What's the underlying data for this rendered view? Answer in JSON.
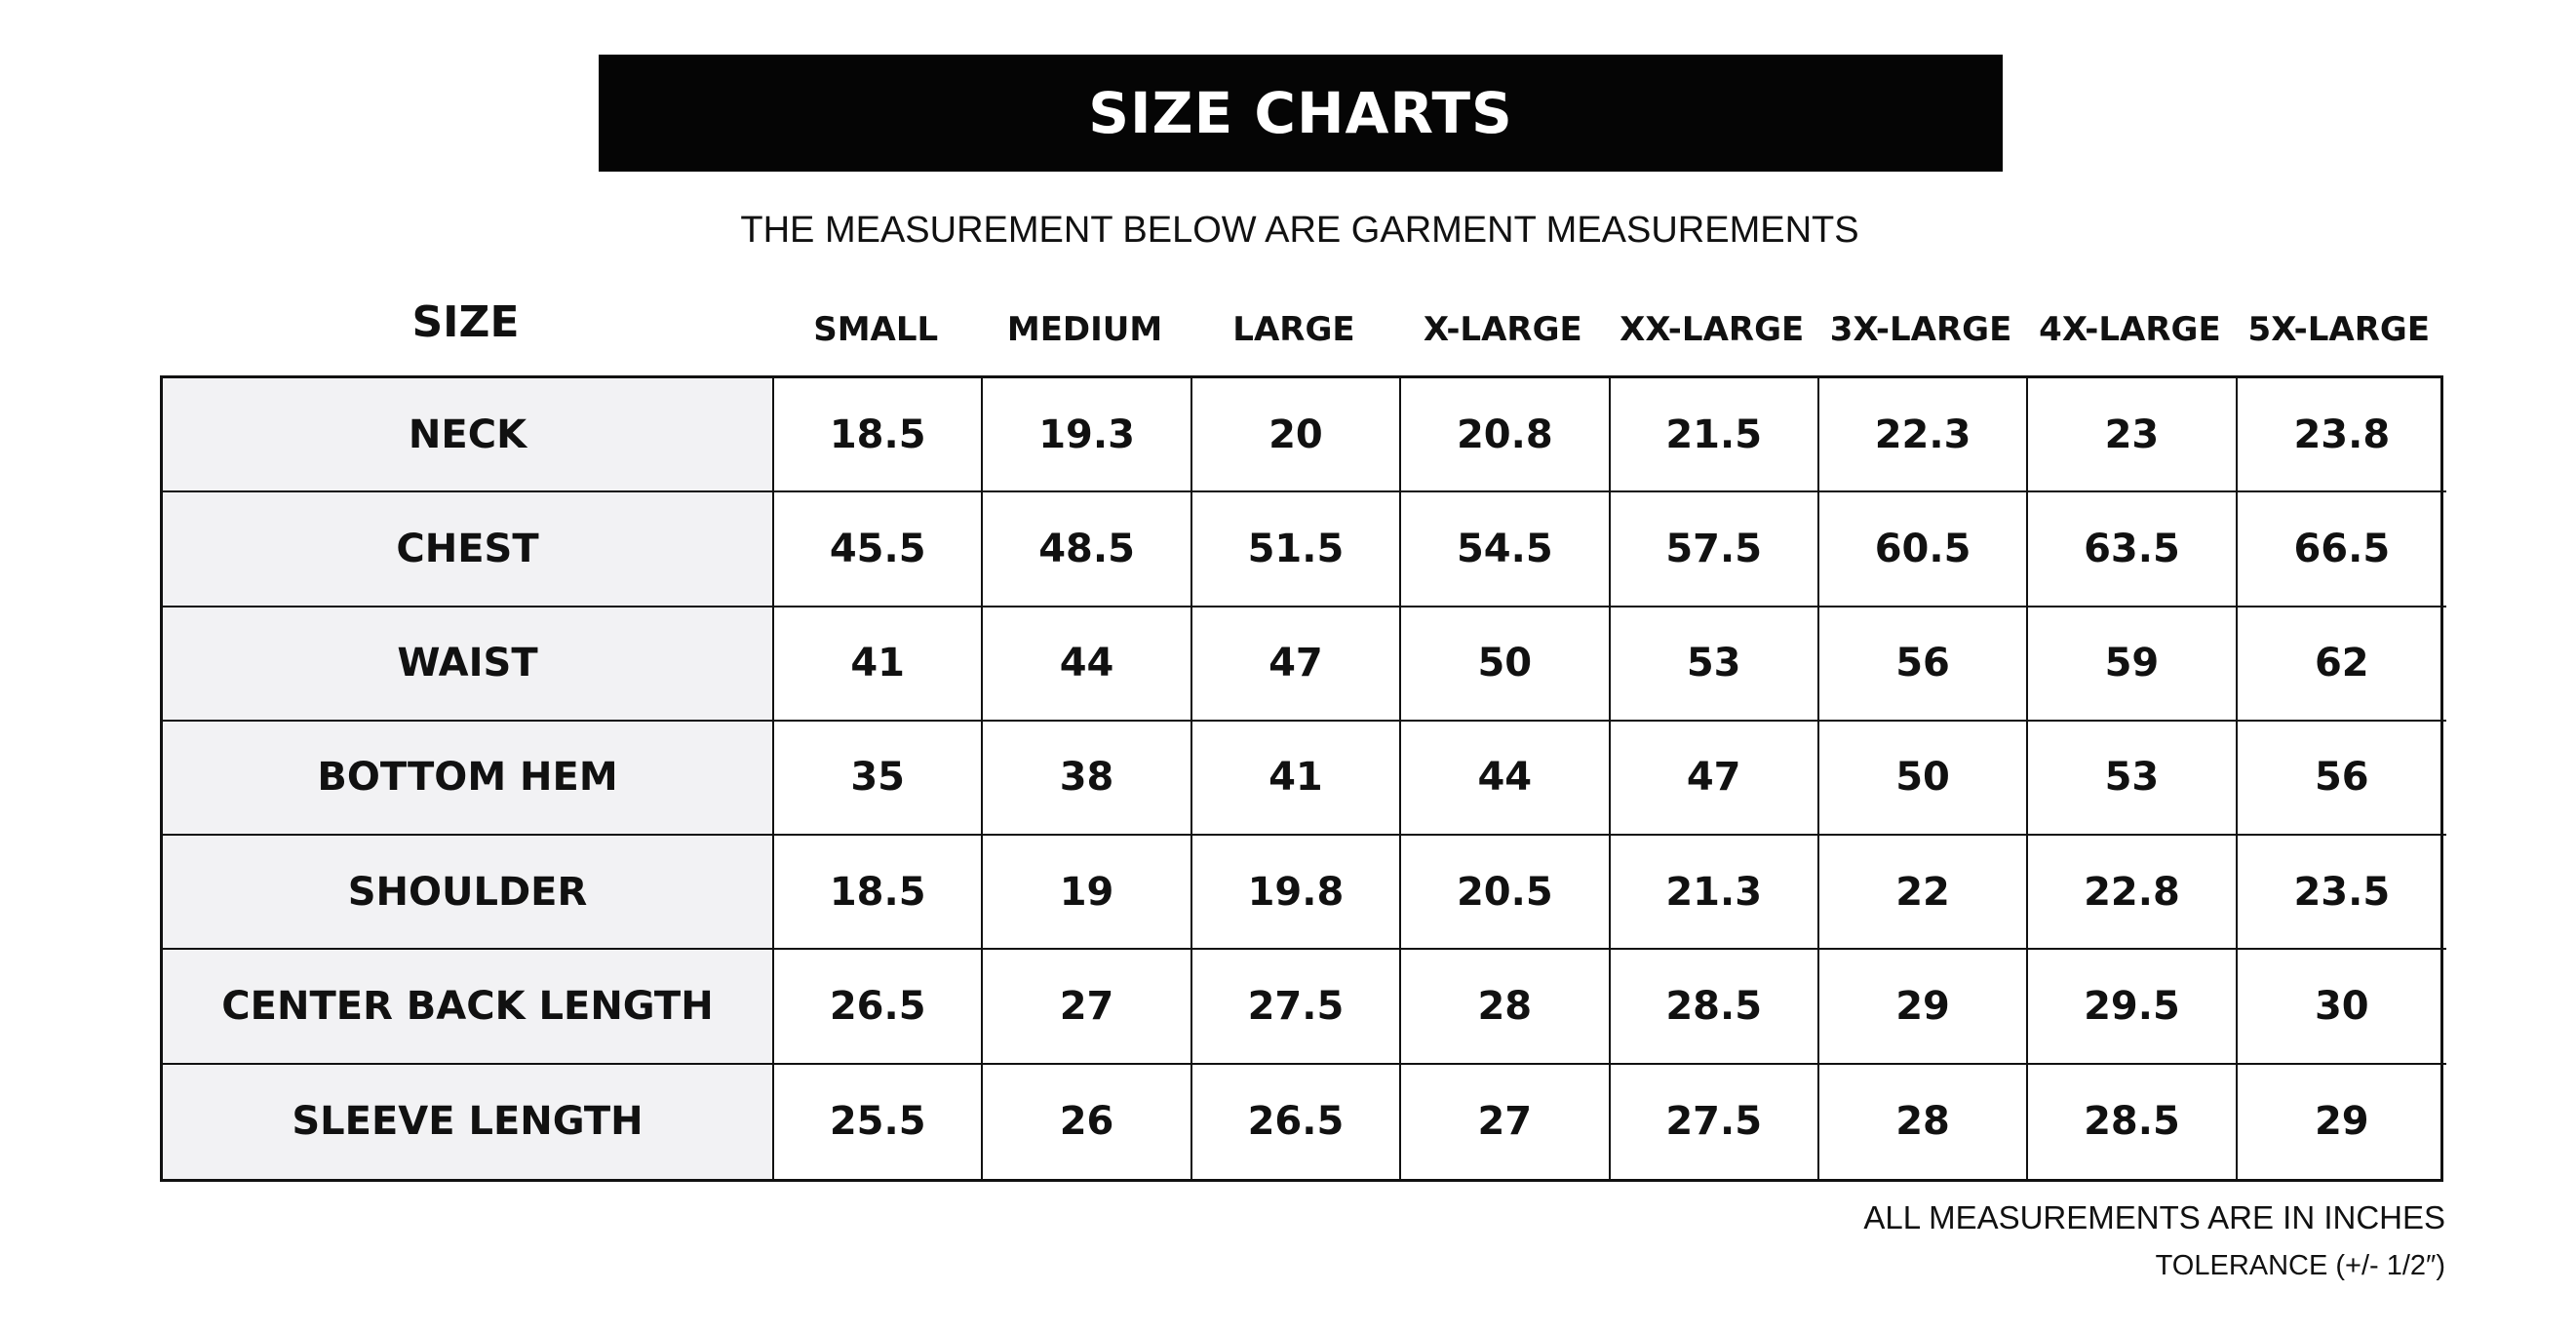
{
  "header": {
    "title": "SIZE CHARTS",
    "subtitle": "THE MEASUREMENT BELOW ARE GARMENT MEASUREMENTS"
  },
  "table": {
    "size_label": "SIZE",
    "columns": [
      "SMALL",
      "MEDIUM",
      "LARGE",
      "X-LARGE",
      "XX-LARGE",
      "3X-LARGE",
      "4X-LARGE",
      "5X-LARGE"
    ],
    "rows": [
      {
        "label": "NECK",
        "values": [
          18.5,
          19.3,
          20,
          20.8,
          21.5,
          22.3,
          23,
          23.8
        ]
      },
      {
        "label": "CHEST",
        "values": [
          45.5,
          48.5,
          51.5,
          54.5,
          57.5,
          60.5,
          63.5,
          66.5
        ]
      },
      {
        "label": "WAIST",
        "values": [
          41,
          44,
          47,
          50,
          53,
          56,
          59,
          62
        ]
      },
      {
        "label": "BOTTOM HEM",
        "values": [
          35,
          38,
          41,
          44,
          47,
          50,
          53,
          56
        ]
      },
      {
        "label": "SHOULDER",
        "values": [
          18.5,
          19,
          19.8,
          20.5,
          21.3,
          22,
          22.8,
          23.5
        ]
      },
      {
        "label": "CENTER BACK LENGTH",
        "values": [
          26.5,
          27,
          27.5,
          28,
          28.5,
          29,
          29.5,
          30
        ]
      },
      {
        "label": "SLEEVE LENGTH",
        "values": [
          25.5,
          26,
          26.5,
          27,
          27.5,
          28,
          28.5,
          29
        ]
      }
    ]
  },
  "footer": {
    "note": "ALL MEASUREMENTS ARE IN INCHES",
    "tolerance": "TOLERANCE (+/- 1/2″)"
  }
}
